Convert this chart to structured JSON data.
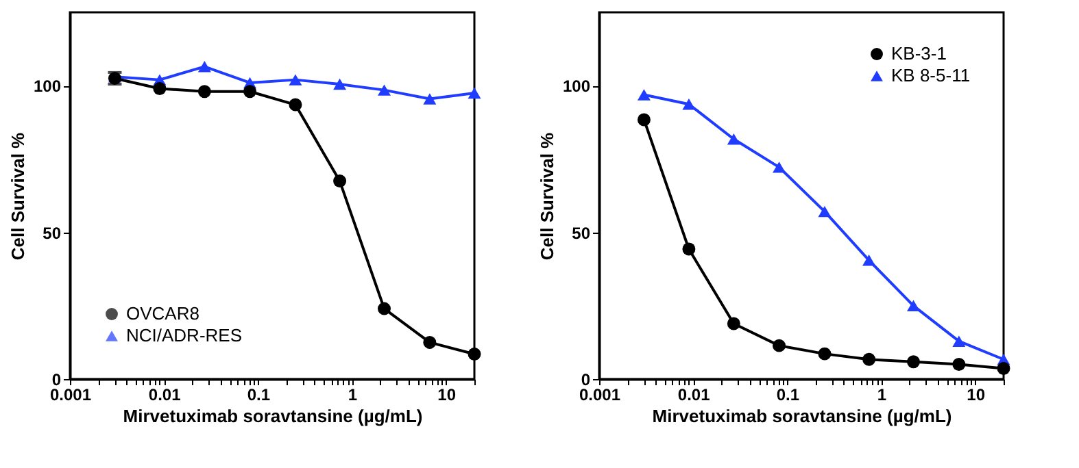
{
  "chart_data": [
    {
      "type": "line",
      "xlabel": "Mirvetuximab soravtansine (µg/mL)",
      "ylabel": "Cell Survival %",
      "log": "x",
      "xlim": [
        0.001,
        20
      ],
      "ylim": [
        0,
        125
      ],
      "yticks": [
        0,
        50,
        100
      ],
      "xticks": [
        0.001,
        {
          "value": 0.002,
          "label": null
        },
        {
          "value": 0.003,
          "label": null
        },
        {
          "value": 0.004,
          "label": null
        },
        {
          "value": 0.005,
          "label": null
        },
        {
          "value": 0.006,
          "label": null
        },
        {
          "value": 0.007,
          "label": null
        },
        {
          "value": 0.008,
          "label": null
        },
        {
          "value": 0.009,
          "label": null
        },
        0.01,
        {
          "value": 0.02,
          "label": null
        },
        {
          "value": 0.03,
          "label": null
        },
        {
          "value": 0.04,
          "label": null
        },
        {
          "value": 0.05,
          "label": null
        },
        {
          "value": 0.06,
          "label": null
        },
        {
          "value": 0.07,
          "label": null
        },
        {
          "value": 0.08,
          "label": null
        },
        {
          "value": 0.09,
          "label": null
        },
        0.1,
        {
          "value": 0.2,
          "label": null
        },
        {
          "value": 0.3,
          "label": null
        },
        {
          "value": 0.4,
          "label": null
        },
        {
          "value": 0.5,
          "label": null
        },
        {
          "value": 0.6,
          "label": null
        },
        {
          "value": 0.7,
          "label": null
        },
        {
          "value": 0.8,
          "label": null
        },
        {
          "value": 0.9,
          "label": null
        },
        1,
        {
          "value": 2,
          "label": null
        },
        {
          "value": 3,
          "label": null
        },
        {
          "value": 4,
          "label": null
        },
        {
          "value": 5,
          "label": null
        },
        {
          "value": 6,
          "label": null
        },
        {
          "value": 7,
          "label": null
        },
        {
          "value": 8,
          "label": null
        },
        {
          "value": 9,
          "label": null
        },
        10,
        {
          "value": 20,
          "label": null
        }
      ],
      "x": [
        0.003,
        0.009,
        0.027,
        0.082,
        0.25,
        0.74,
        2.2,
        6.7,
        20
      ],
      "legend": "bottom left",
      "grid": false,
      "series": [
        {
          "name": "OVCAR8",
          "color": "#000000",
          "marker": "circle",
          "values": [
            102.5,
            99,
            98,
            98,
            93.5,
            67.5,
            24,
            12.5,
            8.5
          ],
          "errors": [
            2,
            null,
            null,
            null,
            null,
            null,
            null,
            null,
            null
          ]
        },
        {
          "name": "NCI/ADR-RES",
          "color": "#1f3cff",
          "marker": "triangle",
          "values": [
            103,
            102,
            106.5,
            101,
            102,
            100.5,
            98.5,
            95.5,
            97.5
          ]
        }
      ]
    },
    {
      "type": "line",
      "xlabel": "Mirvetuximab soravtansine (µg/mL)",
      "ylabel": "Cell Survival %",
      "log": "x",
      "xlim": [
        0.001,
        20
      ],
      "ylim": [
        0,
        125
      ],
      "yticks": [
        0,
        50,
        100
      ],
      "xticks": [
        0.001,
        {
          "value": 0.002,
          "label": null
        },
        {
          "value": 0.003,
          "label": null
        },
        {
          "value": 0.004,
          "label": null
        },
        {
          "value": 0.005,
          "label": null
        },
        {
          "value": 0.006,
          "label": null
        },
        {
          "value": 0.007,
          "label": null
        },
        {
          "value": 0.008,
          "label": null
        },
        {
          "value": 0.009,
          "label": null
        },
        0.01,
        {
          "value": 0.02,
          "label": null
        },
        {
          "value": 0.03,
          "label": null
        },
        {
          "value": 0.04,
          "label": null
        },
        {
          "value": 0.05,
          "label": null
        },
        {
          "value": 0.06,
          "label": null
        },
        {
          "value": 0.07,
          "label": null
        },
        {
          "value": 0.08,
          "label": null
        },
        {
          "value": 0.09,
          "label": null
        },
        0.1,
        {
          "value": 0.2,
          "label": null
        },
        {
          "value": 0.3,
          "label": null
        },
        {
          "value": 0.4,
          "label": null
        },
        {
          "value": 0.5,
          "label": null
        },
        {
          "value": 0.6,
          "label": null
        },
        {
          "value": 0.7,
          "label": null
        },
        {
          "value": 0.8,
          "label": null
        },
        {
          "value": 0.9,
          "label": null
        },
        1,
        {
          "value": 2,
          "label": null
        },
        {
          "value": 3,
          "label": null
        },
        {
          "value": 4,
          "label": null
        },
        {
          "value": 5,
          "label": null
        },
        {
          "value": 6,
          "label": null
        },
        {
          "value": 7,
          "label": null
        },
        {
          "value": 8,
          "label": null
        },
        {
          "value": 9,
          "label": null
        },
        10,
        {
          "value": 20,
          "label": null
        }
      ],
      "x": [
        0.003,
        0.009,
        0.027,
        0.082,
        0.25,
        0.74,
        2.2,
        6.7,
        20
      ],
      "legend": "top right",
      "grid": false,
      "series": [
        {
          "name": "KB-3-1",
          "color": "#000000",
          "marker": "circle",
          "values": [
            88.4,
            44.3,
            18.9,
            11.4,
            8.6,
            6.7,
            5.9,
            5.0,
            3.6
          ]
        },
        {
          "name": "KB 8-5-11",
          "color": "#1f3cff",
          "marker": "triangle",
          "values": [
            96.9,
            93.7,
            81.8,
            72.2,
            57.1,
            40.5,
            25.0,
            12.9,
            6.7
          ]
        }
      ]
    }
  ]
}
